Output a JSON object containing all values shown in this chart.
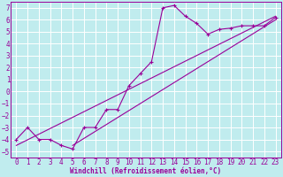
{
  "bg_color": "#c0ecee",
  "grid_color": "#ffffff",
  "line_color": "#990099",
  "xlabel": "Windchill (Refroidissement éolien,°C)",
  "xlim": [
    -0.5,
    23.5
  ],
  "ylim": [
    -5.5,
    7.5
  ],
  "xticks": [
    0,
    1,
    2,
    3,
    4,
    5,
    6,
    7,
    8,
    9,
    10,
    11,
    12,
    13,
    14,
    15,
    16,
    17,
    18,
    19,
    20,
    21,
    22,
    23
  ],
  "yticks": [
    -5,
    -4,
    -3,
    -2,
    -1,
    0,
    1,
    2,
    3,
    4,
    5,
    6,
    7
  ],
  "curve_x": [
    0,
    1,
    2,
    3,
    4,
    5,
    6,
    7,
    8,
    9,
    10,
    11,
    12,
    13,
    14,
    15,
    16,
    17,
    18,
    19,
    20,
    21,
    22,
    23
  ],
  "curve_y": [
    -4,
    -3,
    -4,
    -4,
    -4.5,
    -4.8,
    -3,
    -3,
    -1.5,
    -1.5,
    0.5,
    1.5,
    2.5,
    7.0,
    7.2,
    6.3,
    5.7,
    4.8,
    5.2,
    5.3,
    5.5,
    5.5,
    5.5,
    6.2
  ],
  "line1_x": [
    0,
    23
  ],
  "line1_y": [
    -4.5,
    6.3
  ],
  "line2_x": [
    5,
    23
  ],
  "line2_y": [
    -4.5,
    6.0
  ],
  "tick_fontsize": 5.5,
  "xlabel_fontsize": 5.5
}
